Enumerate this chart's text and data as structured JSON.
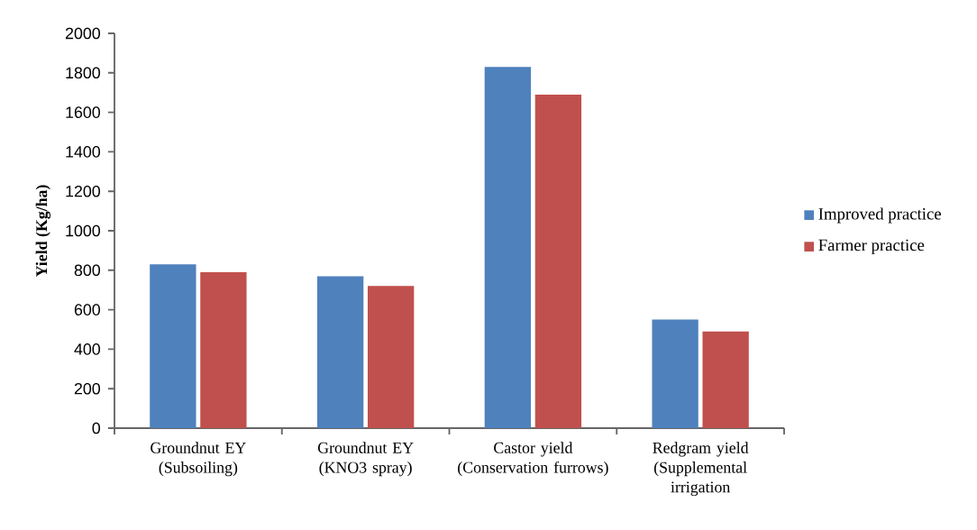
{
  "chart_data": {
    "type": "bar",
    "ylabel": "Yield (Kg/ha)",
    "categories": [
      "Groundnut EY (Subsoiling)",
      "Groundnut EY (KNO3 spray)",
      "Castor yield (Conservation furrows)",
      "Redgram yield (Supplemental irrigation"
    ],
    "series": [
      {
        "name": "Improved practice",
        "color": "#4f81bd",
        "values": [
          830,
          770,
          1830,
          550
        ]
      },
      {
        "name": "Farmer practice",
        "color": "#c0504d",
        "values": [
          790,
          720,
          1690,
          490
        ]
      }
    ],
    "ylim": [
      0,
      2000
    ],
    "yticks": [
      0,
      200,
      400,
      600,
      800,
      1000,
      1200,
      1400,
      1600,
      1800,
      2000
    ],
    "grid": false,
    "legend": "right"
  }
}
